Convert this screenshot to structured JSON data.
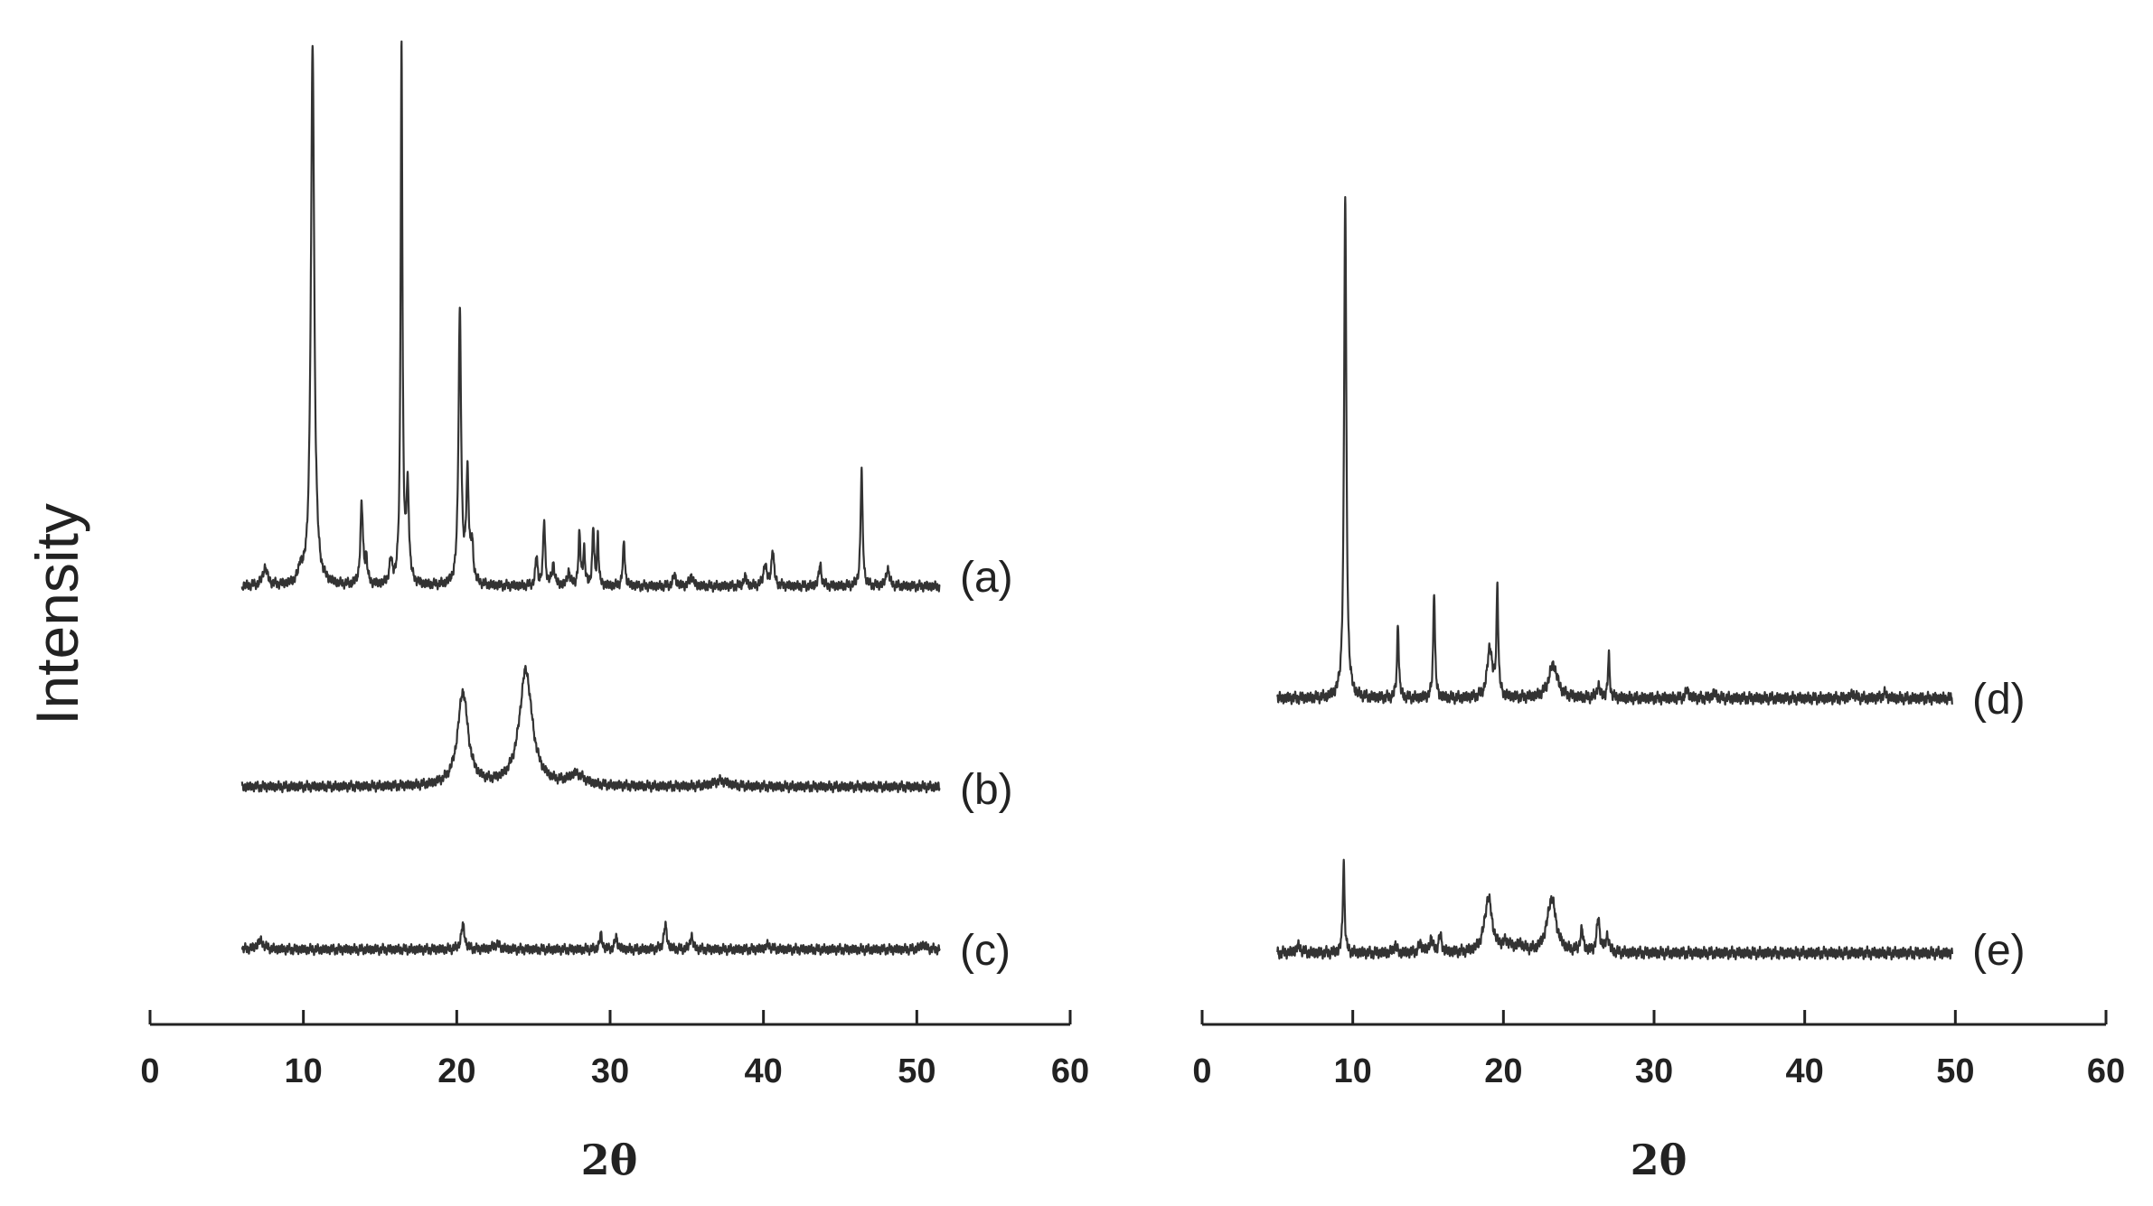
{
  "chart_data": [
    {
      "type": "line",
      "panel": "left",
      "xlabel": "2θ",
      "ylabel": "Intensity",
      "xlim": [
        0,
        60
      ],
      "xticks": [
        0,
        10,
        20,
        30,
        40,
        50,
        60
      ],
      "xrange_data": [
        6,
        51.5
      ],
      "series": [
        {
          "name": "(a)",
          "baseline": 0,
          "peaks": [
            {
              "x": 7.5,
              "h": 2.5,
              "w": 0.18
            },
            {
              "x": 9.8,
              "h": 2.0,
              "w": 0.12
            },
            {
              "x": 10.6,
              "h": 75,
              "w": 0.13
            },
            {
              "x": 13.8,
              "h": 11,
              "w": 0.1
            },
            {
              "x": 14.1,
              "h": 3.5,
              "w": 0.08
            },
            {
              "x": 15.7,
              "h": 3.0,
              "w": 0.12
            },
            {
              "x": 16.4,
              "h": 75,
              "w": 0.07
            },
            {
              "x": 16.8,
              "h": 13,
              "w": 0.1
            },
            {
              "x": 20.2,
              "h": 38,
              "w": 0.1
            },
            {
              "x": 20.7,
              "h": 15,
              "w": 0.1
            },
            {
              "x": 21.0,
              "h": 5,
              "w": 0.1
            },
            {
              "x": 25.2,
              "h": 4,
              "w": 0.08
            },
            {
              "x": 25.7,
              "h": 9,
              "w": 0.08
            },
            {
              "x": 26.3,
              "h": 3,
              "w": 0.1
            },
            {
              "x": 27.3,
              "h": 2,
              "w": 0.1
            },
            {
              "x": 28.0,
              "h": 7,
              "w": 0.08
            },
            {
              "x": 28.3,
              "h": 5,
              "w": 0.07
            },
            {
              "x": 28.9,
              "h": 8,
              "w": 0.07
            },
            {
              "x": 29.2,
              "h": 7,
              "w": 0.06
            },
            {
              "x": 30.9,
              "h": 6,
              "w": 0.08
            },
            {
              "x": 34.2,
              "h": 1.5,
              "w": 0.12
            },
            {
              "x": 35.3,
              "h": 1.5,
              "w": 0.12
            },
            {
              "x": 38.8,
              "h": 1.2,
              "w": 0.12
            },
            {
              "x": 40.1,
              "h": 3,
              "w": 0.12
            },
            {
              "x": 40.6,
              "h": 5,
              "w": 0.1
            },
            {
              "x": 43.7,
              "h": 3,
              "w": 0.1
            },
            {
              "x": 46.4,
              "h": 16,
              "w": 0.08
            },
            {
              "x": 48.1,
              "h": 2.5,
              "w": 0.12
            }
          ]
        },
        {
          "name": "(b)",
          "baseline": 0,
          "peaks": [
            {
              "x": 20.4,
              "h": 13,
              "w": 0.4
            },
            {
              "x": 24.5,
              "h": 16,
              "w": 0.5
            },
            {
              "x": 27.8,
              "h": 1.5,
              "w": 0.6
            },
            {
              "x": 37.2,
              "h": 0.8,
              "w": 0.6
            }
          ]
        },
        {
          "name": "(c)",
          "baseline": 0,
          "peaks": [
            {
              "x": 7.2,
              "h": 1.2,
              "w": 0.25
            },
            {
              "x": 20.4,
              "h": 3.3,
              "w": 0.14
            },
            {
              "x": 22.6,
              "h": 0.7,
              "w": 0.25
            },
            {
              "x": 29.4,
              "h": 2.0,
              "w": 0.1
            },
            {
              "x": 30.4,
              "h": 1.7,
              "w": 0.1
            },
            {
              "x": 33.6,
              "h": 3.3,
              "w": 0.12
            },
            {
              "x": 35.3,
              "h": 2.0,
              "w": 0.1
            },
            {
              "x": 40.3,
              "h": 0.6,
              "w": 0.2
            },
            {
              "x": 50.4,
              "h": 0.7,
              "w": 0.2
            }
          ]
        }
      ]
    },
    {
      "type": "line",
      "panel": "right",
      "xlabel": "2θ",
      "xlim": [
        0,
        60
      ],
      "xticks": [
        0,
        10,
        20,
        30,
        40,
        50,
        60
      ],
      "xrange_data": [
        5,
        49.8
      ],
      "series": [
        {
          "name": "(d)",
          "baseline": 0,
          "peaks": [
            {
              "x": 9.5,
              "h": 60,
              "w": 0.09
            },
            {
              "x": 13.0,
              "h": 9,
              "w": 0.07
            },
            {
              "x": 15.4,
              "h": 13,
              "w": 0.07
            },
            {
              "x": 19.1,
              "h": 6,
              "w": 0.2
            },
            {
              "x": 19.6,
              "h": 13,
              "w": 0.07
            },
            {
              "x": 23.3,
              "h": 4,
              "w": 0.35
            },
            {
              "x": 26.3,
              "h": 1.5,
              "w": 0.12
            },
            {
              "x": 27.0,
              "h": 5,
              "w": 0.07
            },
            {
              "x": 32.2,
              "h": 1.0,
              "w": 0.12
            },
            {
              "x": 34.0,
              "h": 0.6,
              "w": 0.15
            },
            {
              "x": 43.2,
              "h": 0.6,
              "w": 0.15
            },
            {
              "x": 45.3,
              "h": 0.6,
              "w": 0.15
            }
          ]
        },
        {
          "name": "(e)",
          "baseline": 0,
          "peaks": [
            {
              "x": 6.4,
              "h": 0.8,
              "w": 0.2
            },
            {
              "x": 9.4,
              "h": 11,
              "w": 0.07
            },
            {
              "x": 12.8,
              "h": 1.0,
              "w": 0.1
            },
            {
              "x": 14.5,
              "h": 1.0,
              "w": 0.15
            },
            {
              "x": 15.2,
              "h": 1.6,
              "w": 0.12
            },
            {
              "x": 15.8,
              "h": 2.0,
              "w": 0.12
            },
            {
              "x": 19.0,
              "h": 6.5,
              "w": 0.3
            },
            {
              "x": 20.2,
              "h": 1.0,
              "w": 0.3
            },
            {
              "x": 21.1,
              "h": 0.8,
              "w": 0.3
            },
            {
              "x": 23.2,
              "h": 6.5,
              "w": 0.35
            },
            {
              "x": 25.2,
              "h": 2.5,
              "w": 0.12
            },
            {
              "x": 26.3,
              "h": 4.0,
              "w": 0.12
            },
            {
              "x": 26.9,
              "h": 2.0,
              "w": 0.12
            }
          ]
        }
      ]
    }
  ]
}
